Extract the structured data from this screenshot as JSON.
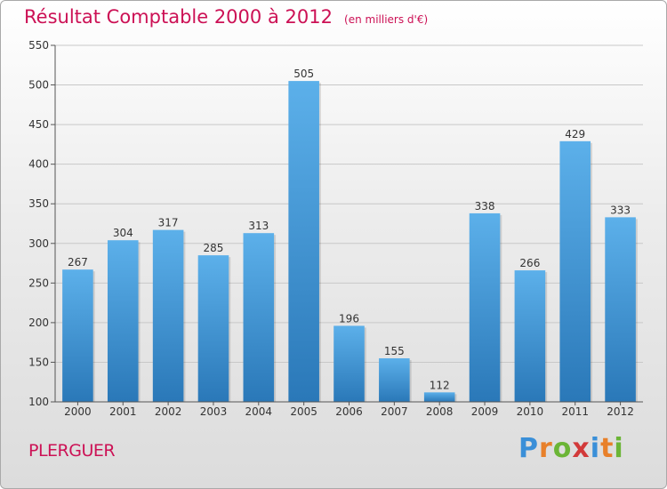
{
  "title": "Résultat Comptable 2000 à 2012",
  "subtitle": "(en milliers d'€)",
  "commune": "PLERGUER",
  "logo": {
    "letters": [
      "P",
      "r",
      "o",
      "x",
      "i",
      "t",
      "i"
    ],
    "colors": [
      "#3a8fd8",
      "#e8802a",
      "#6bb536",
      "#d23a3a",
      "#3a8fd8",
      "#e8802a",
      "#6bb536"
    ]
  },
  "colors": {
    "bar_top": "#5cb0ea",
    "bar_bottom": "#2a78b8",
    "grid": "#c8c8c8",
    "axis": "#555555",
    "title": "#cc1155"
  },
  "chart_data": {
    "type": "bar",
    "title": "Résultat Comptable 2000 à 2012",
    "subtitle": "(en milliers d'€)",
    "categories": [
      "2000",
      "2001",
      "2002",
      "2003",
      "2004",
      "2005",
      "2006",
      "2007",
      "2008",
      "2009",
      "2010",
      "2011",
      "2012"
    ],
    "values": [
      267,
      304,
      317,
      285,
      313,
      505,
      196,
      155,
      112,
      338,
      266,
      429,
      333
    ],
    "xlabel": "",
    "ylabel": "",
    "ylim": [
      100,
      550
    ],
    "yticks": [
      100,
      150,
      200,
      250,
      300,
      350,
      400,
      450,
      500,
      550
    ],
    "grid": true,
    "legend": "none"
  }
}
